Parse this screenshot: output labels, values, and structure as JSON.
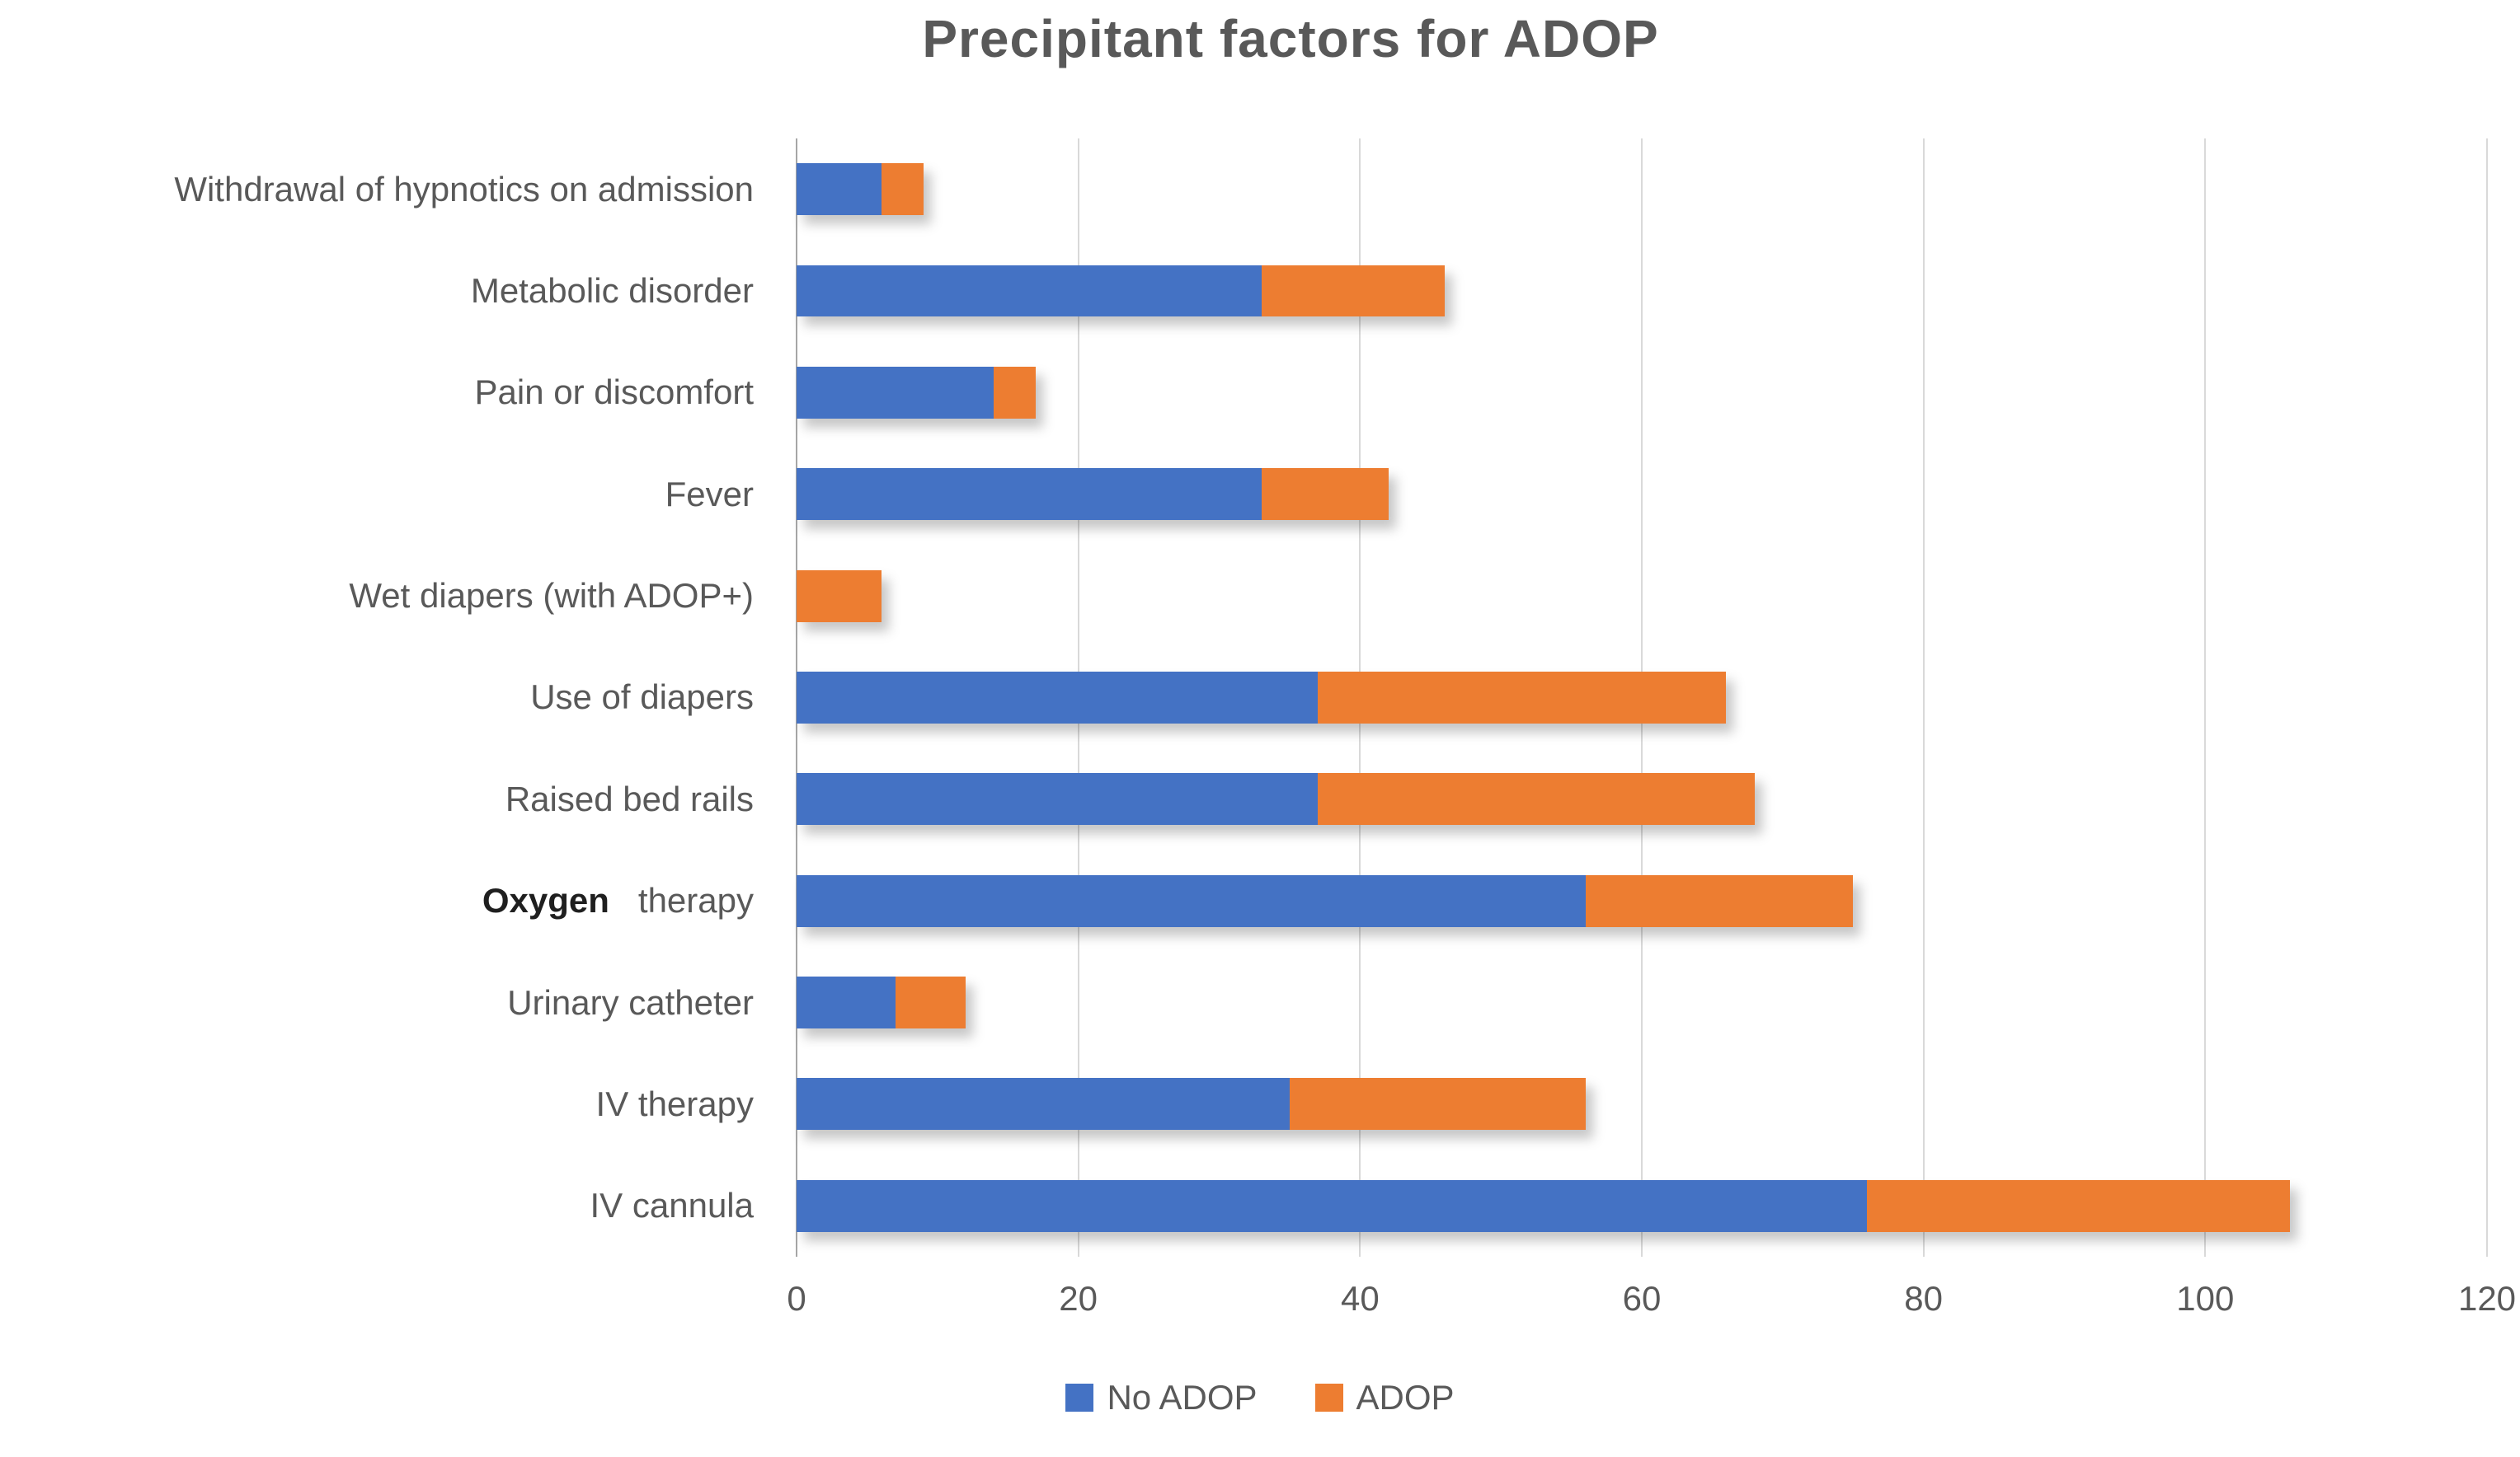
{
  "chart": {
    "title": "Precipitant factors for ADOP",
    "colors": {
      "no_adop": "#4472C4",
      "adop": "#ED7D31",
      "grid": "#D9D9D9",
      "axis_line": "#A6A6A6",
      "text": "#595959"
    },
    "x_axis": {
      "max": 120,
      "ticks": [
        "0",
        "20",
        "40",
        "60",
        "80",
        "100",
        "120"
      ]
    },
    "legend": [
      {
        "label": "No ADOP",
        "color": "#4472C4"
      },
      {
        "label": "ADOP",
        "color": "#ED7D31"
      }
    ],
    "rows": [
      {
        "label": "Withdrawal of hypnotics on admission",
        "no_adop": 6,
        "adop": 3
      },
      {
        "label": "Metabolic disorder",
        "no_adop": 33,
        "adop": 13
      },
      {
        "label": "Pain or discomfort",
        "no_adop": 14,
        "adop": 3
      },
      {
        "label": "Fever",
        "no_adop": 33,
        "adop": 9
      },
      {
        "label": "Wet diapers (with ADOP+)",
        "no_adop": 0,
        "adop": 6
      },
      {
        "label": "Use of diapers",
        "no_adop": 37,
        "adop": 29
      },
      {
        "label": "Raised bed rails",
        "no_adop": 37,
        "adop": 31
      },
      {
        "label": "Oxygen therapy",
        "strong_prefix": "Oxygen",
        "label_rest": "therapy",
        "no_adop": 56,
        "adop": 19
      },
      {
        "label": "Urinary catheter",
        "no_adop": 7,
        "adop": 5
      },
      {
        "label": "IV therapy",
        "no_adop": 35,
        "adop": 21
      },
      {
        "label": "IV cannula",
        "no_adop": 76,
        "adop": 30
      }
    ]
  },
  "chart_data": {
    "type": "bar",
    "orientation": "horizontal_stacked",
    "title": "Precipitant factors for ADOP",
    "categories_top_to_bottom": [
      "Withdrawal of hypnotics on admission",
      "Metabolic disorder",
      "Pain or discomfort",
      "Fever",
      "Wet diapers (with ADOP+)",
      "Use of diapers",
      "Raised bed rails",
      "Oxygen therapy",
      "Urinary catheter",
      "IV therapy",
      "IV cannula"
    ],
    "series": [
      {
        "name": "No ADOP",
        "color": "#4472C4",
        "values": [
          6,
          33,
          14,
          33,
          0,
          37,
          37,
          56,
          7,
          35,
          76
        ]
      },
      {
        "name": "ADOP",
        "color": "#ED7D31",
        "values": [
          3,
          13,
          3,
          9,
          6,
          29,
          31,
          19,
          5,
          21,
          30
        ]
      }
    ],
    "totals": [
      9,
      46,
      17,
      42,
      6,
      66,
      68,
      75,
      12,
      56,
      106
    ],
    "xlim": [
      0,
      120
    ],
    "x_ticks": [
      0,
      20,
      40,
      60,
      80,
      100,
      120
    ],
    "grid": "vertical",
    "legend_position": "bottom"
  }
}
